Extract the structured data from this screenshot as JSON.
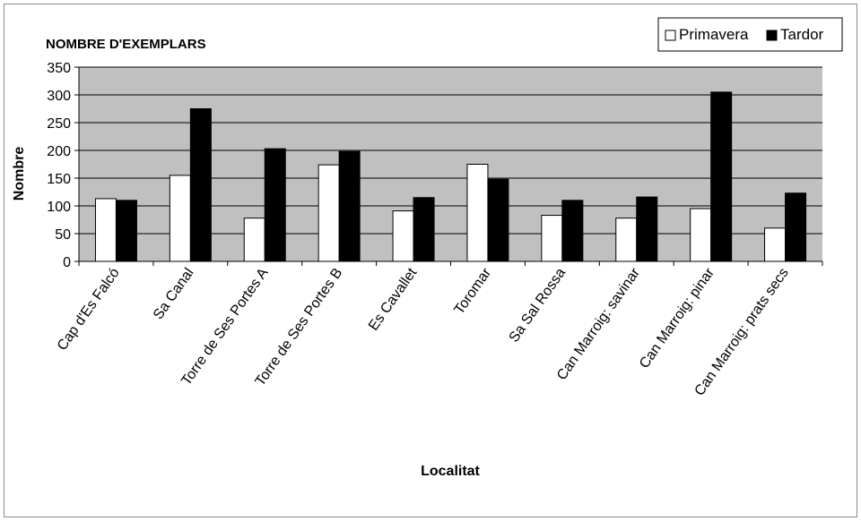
{
  "chart_data": {
    "type": "bar",
    "title": "NOMBRE D'EXEMPLARS",
    "xlabel": "Localitat",
    "ylabel": "Nombre",
    "ylim": [
      0,
      350
    ],
    "yticks": [
      0,
      50,
      100,
      150,
      200,
      250,
      300,
      350
    ],
    "grid": true,
    "legend_position": "top-right",
    "plot_background": "#c0c0c0",
    "categories": [
      "Cap d'Es Falcó",
      "Sa Canal",
      "Torre de Ses Portes A",
      "Torre de Ses Portes B",
      "Es Cavallet",
      "Toromar",
      "Sa Sal Rossa",
      "Can Marroig: savinar",
      "Can Marroig: pinar",
      "Can Marroig: prats secs"
    ],
    "series": [
      {
        "name": "Primavera",
        "color": "#ffffff",
        "values": [
          113,
          155,
          78,
          174,
          91,
          175,
          83,
          78,
          95,
          60
        ]
      },
      {
        "name": "Tardor",
        "color": "#000000",
        "values": [
          110,
          275,
          203,
          198,
          115,
          148,
          110,
          116,
          305,
          123
        ]
      }
    ]
  }
}
